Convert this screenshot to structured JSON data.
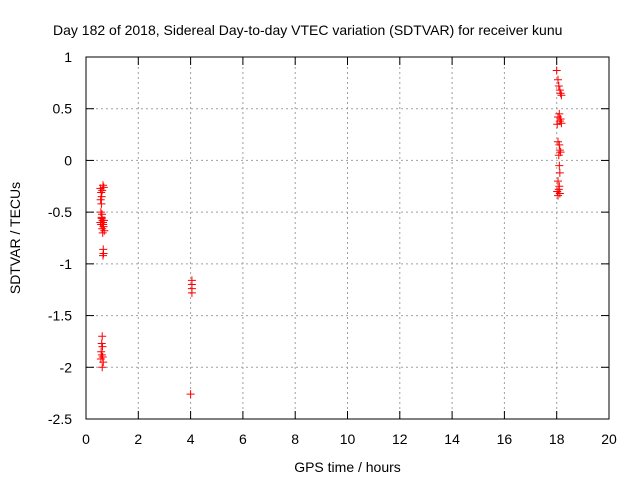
{
  "chart_data": {
    "type": "scatter",
    "title": "Day 182 of 2018, Sidereal Day-to-day VTEC variation (SDTVAR) for receiver kunu",
    "xlabel": "GPS time / hours",
    "ylabel": "SDTVAR / TECUs",
    "xlim": [
      0,
      20
    ],
    "ylim": [
      -2.5,
      1
    ],
    "xticks": [
      0,
      2,
      4,
      6,
      8,
      10,
      12,
      14,
      16,
      18,
      20
    ],
    "yticks": [
      -2.5,
      -2,
      -1.5,
      -1,
      -0.5,
      0,
      0.5,
      1
    ],
    "xtick_labels": [
      "0",
      "2",
      "4",
      "6",
      "8",
      "10",
      "12",
      "14",
      "16",
      "18",
      "20"
    ],
    "ytick_labels": [
      "-2.5",
      "-2",
      "-1.5",
      "-1",
      "-0.5",
      "0",
      "0.5",
      "1"
    ],
    "grid": true,
    "marker": "+",
    "color": "#ff0000",
    "series": [
      {
        "name": "SDTVAR",
        "points": [
          [
            0.55,
            -0.27
          ],
          [
            0.58,
            -0.31
          ],
          [
            0.6,
            -0.35
          ],
          [
            0.56,
            -0.38
          ],
          [
            0.62,
            -0.29
          ],
          [
            0.65,
            -0.24
          ],
          [
            0.68,
            -0.26
          ],
          [
            0.59,
            -0.42
          ],
          [
            0.57,
            -0.5
          ],
          [
            0.6,
            -0.55
          ],
          [
            0.63,
            -0.58
          ],
          [
            0.55,
            -0.6
          ],
          [
            0.58,
            -0.62
          ],
          [
            0.6,
            -0.56
          ],
          [
            0.65,
            -0.6
          ],
          [
            0.67,
            -0.64
          ],
          [
            0.62,
            -0.66
          ],
          [
            0.7,
            -0.68
          ],
          [
            0.64,
            -0.7
          ],
          [
            0.61,
            -0.52
          ],
          [
            0.66,
            -0.62
          ],
          [
            0.69,
            -0.58
          ],
          [
            0.66,
            -0.86
          ],
          [
            0.67,
            -0.9
          ],
          [
            0.65,
            -0.92
          ],
          [
            0.62,
            -1.7
          ],
          [
            0.6,
            -1.77
          ],
          [
            0.63,
            -1.8
          ],
          [
            0.58,
            -1.85
          ],
          [
            0.61,
            -1.88
          ],
          [
            0.64,
            -1.9
          ],
          [
            0.57,
            -1.92
          ],
          [
            0.66,
            -1.95
          ],
          [
            0.62,
            -2.0
          ],
          [
            4.05,
            -1.16
          ],
          [
            4.05,
            -1.2
          ],
          [
            4.05,
            -1.24
          ],
          [
            4.05,
            -1.28
          ],
          [
            4.0,
            -2.26
          ],
          [
            18.0,
            0.87
          ],
          [
            18.05,
            0.78
          ],
          [
            18.08,
            0.72
          ],
          [
            18.12,
            0.68
          ],
          [
            18.15,
            0.65
          ],
          [
            18.18,
            0.63
          ],
          [
            18.1,
            0.45
          ],
          [
            18.05,
            0.42
          ],
          [
            18.15,
            0.4
          ],
          [
            18.12,
            0.38
          ],
          [
            18.02,
            0.35
          ],
          [
            18.18,
            0.36
          ],
          [
            18.05,
            0.18
          ],
          [
            18.1,
            0.15
          ],
          [
            18.12,
            0.1
          ],
          [
            18.15,
            0.08
          ],
          [
            18.08,
            0.05
          ],
          [
            18.1,
            -0.05
          ],
          [
            18.12,
            -0.12
          ],
          [
            18.05,
            -0.2
          ],
          [
            18.1,
            -0.25
          ],
          [
            18.08,
            -0.28
          ],
          [
            18.02,
            -0.3
          ],
          [
            18.12,
            -0.32
          ],
          [
            18.05,
            -0.34
          ]
        ]
      }
    ]
  }
}
